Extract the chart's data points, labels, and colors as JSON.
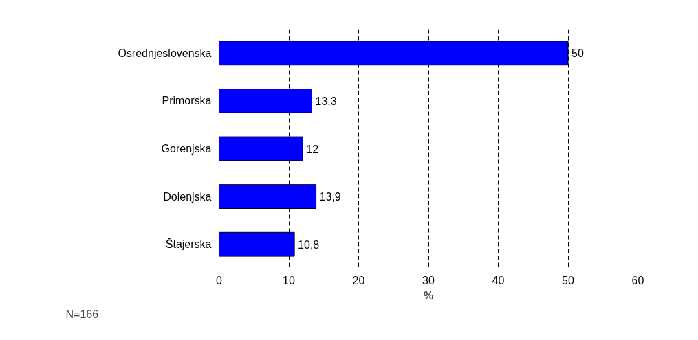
{
  "chart_data": {
    "type": "bar",
    "orientation": "horizontal",
    "categories": [
      "Osrednjeslovenska",
      "Primorska",
      "Gorenjska",
      "Dolenjska",
      "Štajerska"
    ],
    "values": [
      50,
      13.3,
      12,
      13.9,
      10.8
    ],
    "value_labels": [
      "50",
      "13,3",
      "12",
      "13,9",
      "10,8"
    ],
    "color": "#0000ff",
    "xlabel": "%",
    "xlim": [
      0,
      60
    ],
    "xticks": [
      0,
      10,
      20,
      30,
      40,
      50,
      60
    ],
    "grid": "x",
    "line_style": "dashed",
    "annotations": [
      "N=166"
    ]
  }
}
